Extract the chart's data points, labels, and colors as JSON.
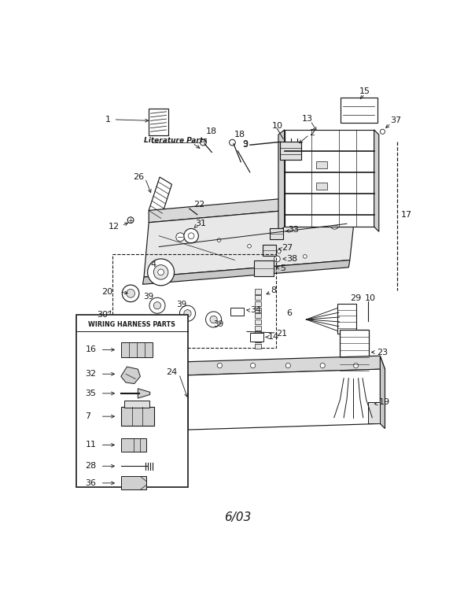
{
  "title": "6/03",
  "bg_color": "#ffffff",
  "fg_color": "#1a1a1a",
  "fig_width": 5.9,
  "fig_height": 7.65,
  "dpi": 100,
  "lit_text": "Literature Parts",
  "harness_title": "WIRING HARNESS PARTS"
}
